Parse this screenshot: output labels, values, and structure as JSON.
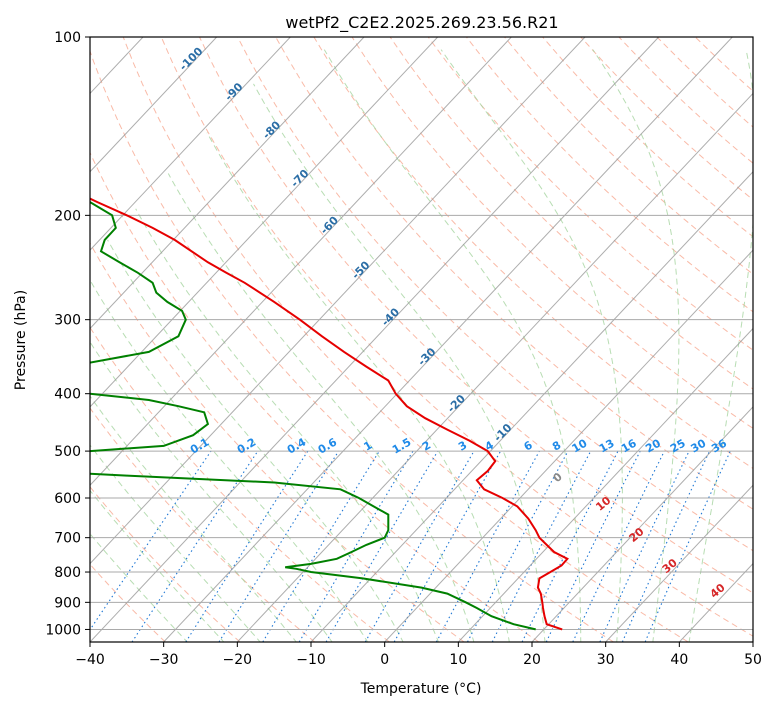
{
  "chart_data": {
    "type": "line",
    "subtype": "skew-T log-p diagram",
    "title": "wetPf2_C2E2.2025.269.23.56.R21",
    "xlabel": "Temperature (°C)",
    "ylabel": "Pressure (hPa)",
    "xlim": [
      -40,
      50
    ],
    "ylim": [
      1050,
      100
    ],
    "y_scale": "log",
    "grid": true,
    "x_ticks": [
      -40,
      -30,
      -20,
      -10,
      0,
      10,
      20,
      30,
      40,
      50
    ],
    "y_ticks": [
      100,
      200,
      300,
      400,
      500,
      600,
      700,
      800,
      900,
      1000
    ],
    "series": [
      {
        "role": "temperature",
        "color": "#e60000",
        "points": [
          [
            1000,
            24.1
          ],
          [
            980,
            22.0
          ],
          [
            950,
            21.7
          ],
          [
            920,
            21.5
          ],
          [
            900,
            21.4
          ],
          [
            870,
            21.2
          ],
          [
            850,
            20.8
          ],
          [
            820,
            21.0
          ],
          [
            800,
            22.5
          ],
          [
            780,
            24.0
          ],
          [
            760,
            24.8
          ],
          [
            740,
            23.0
          ],
          [
            720,
            22.0
          ],
          [
            700,
            21.0
          ],
          [
            680,
            20.5
          ],
          [
            650,
            19.5
          ],
          [
            620,
            18.0
          ],
          [
            600,
            16.0
          ],
          [
            580,
            13.5
          ],
          [
            560,
            12.5
          ],
          [
            540,
            14.0
          ],
          [
            520,
            15.0
          ],
          [
            500,
            14.0
          ],
          [
            480,
            11.5
          ],
          [
            460,
            8.5
          ],
          [
            440,
            5.5
          ],
          [
            420,
            3.0
          ],
          [
            400,
            1.5
          ],
          [
            380,
            0.5
          ],
          [
            360,
            -2.5
          ],
          [
            340,
            -5.5
          ],
          [
            320,
            -8.5
          ],
          [
            300,
            -11.5
          ],
          [
            280,
            -15.0
          ],
          [
            260,
            -19.0
          ],
          [
            250,
            -21.5
          ],
          [
            240,
            -24.0
          ],
          [
            220,
            -28.5
          ],
          [
            210,
            -31.5
          ],
          [
            200,
            -35.0
          ],
          [
            190,
            -39.0
          ],
          [
            180,
            -43.0
          ],
          [
            170,
            -47.5
          ],
          [
            165,
            -48.5
          ],
          [
            160,
            -48.5
          ],
          [
            150,
            -49.0
          ],
          [
            140,
            -50.5
          ],
          [
            130,
            -53.0
          ],
          [
            120,
            -56.0
          ],
          [
            110,
            -59.0
          ],
          [
            100,
            -62.0
          ]
        ]
      },
      {
        "role": "dewpoint",
        "color": "#008000",
        "points": [
          [
            1000,
            20.5
          ],
          [
            980,
            17.5
          ],
          [
            950,
            14.5
          ],
          [
            920,
            12.5
          ],
          [
            900,
            11.0
          ],
          [
            870,
            8.5
          ],
          [
            850,
            5.0
          ],
          [
            820,
            -3.0
          ],
          [
            800,
            -10.0
          ],
          [
            790,
            -12.0
          ],
          [
            785,
            -13.5
          ],
          [
            775,
            -10.0
          ],
          [
            760,
            -6.5
          ],
          [
            740,
            -4.5
          ],
          [
            720,
            -2.5
          ],
          [
            700,
            0.0
          ],
          [
            680,
            0.5
          ],
          [
            660,
            0.5
          ],
          [
            640,
            0.5
          ],
          [
            620,
            -1.5
          ],
          [
            600,
            -3.5
          ],
          [
            580,
            -6.0
          ],
          [
            565,
            -15.0
          ],
          [
            550,
            -35.0
          ],
          [
            530,
            -60.0
          ],
          [
            520,
            -62.0
          ],
          [
            510,
            -50.0
          ],
          [
            500,
            -40.0
          ],
          [
            490,
            -30.0
          ],
          [
            470,
            -26.0
          ],
          [
            450,
            -24.0
          ],
          [
            430,
            -24.5
          ],
          [
            420,
            -28.0
          ],
          [
            410,
            -32.0
          ],
          [
            400,
            -40.0
          ],
          [
            390,
            -60.0
          ],
          [
            380,
            -62.0
          ],
          [
            370,
            -58.0
          ],
          [
            360,
            -43.0
          ],
          [
            340,
            -32.0
          ],
          [
            320,
            -28.0
          ],
          [
            300,
            -27.0
          ],
          [
            290,
            -27.5
          ],
          [
            280,
            -29.5
          ],
          [
            270,
            -31.0
          ],
          [
            260,
            -31.5
          ],
          [
            250,
            -33.5
          ],
          [
            240,
            -36.0
          ],
          [
            230,
            -38.5
          ],
          [
            220,
            -38.0
          ],
          [
            210,
            -36.5
          ],
          [
            200,
            -37.0
          ],
          [
            190,
            -40.0
          ],
          [
            180,
            -42.5
          ],
          [
            170,
            -46.0
          ],
          [
            165,
            -49.0
          ],
          [
            160,
            -52.5
          ],
          [
            150,
            -56.5
          ],
          [
            140,
            -58.0
          ],
          [
            130,
            -61.0
          ],
          [
            120,
            -63.0
          ],
          [
            115,
            -63.5
          ],
          [
            110,
            -64.0
          ],
          [
            100,
            -64.0
          ]
        ]
      }
    ],
    "reference_lines": {
      "dry_adiabats": "dashed light red",
      "moist_adiabats": "dashed light green",
      "isotherms": "skewed solid gray",
      "mixing_ratio_lines": "dotted blue"
    },
    "dry_adiabat_labels": [
      "-100",
      "-90",
      "-80",
      "-70",
      "-60",
      "-50",
      "-40",
      "-30",
      "-20",
      "-10"
    ],
    "mixing_ratio_labels": [
      "0.1",
      "0.2",
      "0.4",
      "0.6",
      "1",
      "1.5",
      "2",
      "3",
      "4",
      "6",
      "8",
      "10",
      "13",
      "16",
      "20",
      "25",
      "30",
      "36"
    ],
    "moist_adiabat_labels": [
      "0",
      "10",
      "20",
      "30",
      "40"
    ]
  }
}
